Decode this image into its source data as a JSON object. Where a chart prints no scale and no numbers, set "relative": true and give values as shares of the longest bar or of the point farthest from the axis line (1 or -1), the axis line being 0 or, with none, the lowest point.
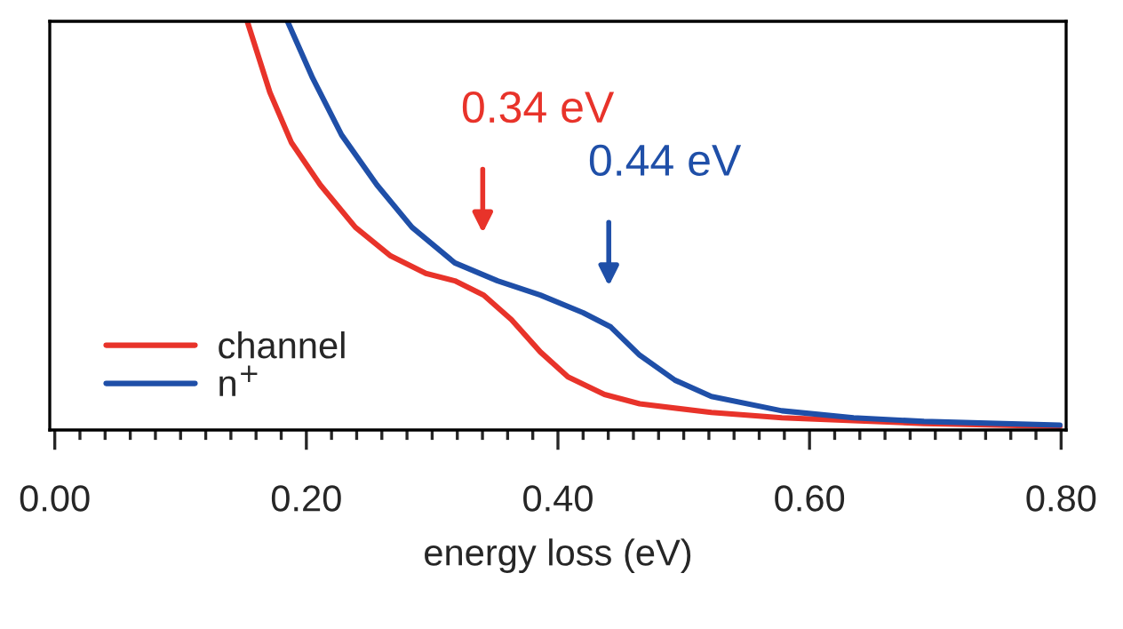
{
  "chart_data": {
    "type": "line",
    "relative": true,
    "xlabel": "energy loss (eV)",
    "xlim": [
      -0.004,
      0.804
    ],
    "xticks": [
      {
        "value": 0.0,
        "label": "0.00"
      },
      {
        "value": 0.02,
        "label": null
      },
      {
        "value": 0.04,
        "label": null
      },
      {
        "value": 0.06,
        "label": null
      },
      {
        "value": 0.08,
        "label": null
      },
      {
        "value": 0.1,
        "label": null
      },
      {
        "value": 0.12,
        "label": null
      },
      {
        "value": 0.14,
        "label": null
      },
      {
        "value": 0.16,
        "label": null
      },
      {
        "value": 0.18,
        "label": null
      },
      {
        "value": 0.2,
        "label": "0.20"
      },
      {
        "value": 0.22,
        "label": null
      },
      {
        "value": 0.24,
        "label": null
      },
      {
        "value": 0.26,
        "label": null
      },
      {
        "value": 0.28,
        "label": null
      },
      {
        "value": 0.3,
        "label": null
      },
      {
        "value": 0.32,
        "label": null
      },
      {
        "value": 0.34,
        "label": null
      },
      {
        "value": 0.36,
        "label": null
      },
      {
        "value": 0.38,
        "label": null
      },
      {
        "value": 0.4,
        "label": "0.40"
      },
      {
        "value": 0.42,
        "label": null
      },
      {
        "value": 0.44,
        "label": null
      },
      {
        "value": 0.46,
        "label": null
      },
      {
        "value": 0.48,
        "label": null
      },
      {
        "value": 0.5,
        "label": null
      },
      {
        "value": 0.52,
        "label": null
      },
      {
        "value": 0.54,
        "label": null
      },
      {
        "value": 0.56,
        "label": null
      },
      {
        "value": 0.58,
        "label": null
      },
      {
        "value": 0.6,
        "label": "0.60"
      },
      {
        "value": 0.62,
        "label": null
      },
      {
        "value": 0.64,
        "label": null
      },
      {
        "value": 0.66,
        "label": null
      },
      {
        "value": 0.68,
        "label": null
      },
      {
        "value": 0.7,
        "label": null
      },
      {
        "value": 0.72,
        "label": null
      },
      {
        "value": 0.74,
        "label": null
      },
      {
        "value": 0.76,
        "label": null
      },
      {
        "value": 0.78,
        "label": null
      },
      {
        "value": 0.8,
        "label": "0.80"
      }
    ],
    "tick_labels": "x",
    "grid": false,
    "legend": "bottom left",
    "line_style": "solid",
    "marker": "none",
    "series": [
      {
        "name": "channel",
        "color": "#e8332a",
        "x": [
          0.153,
          0.171,
          0.188,
          0.211,
          0.239,
          0.267,
          0.295,
          0.318,
          0.341,
          0.363,
          0.386,
          0.408,
          0.437,
          0.465,
          0.522,
          0.578,
          0.635,
          0.691,
          0.799
        ],
        "values": [
          1.0,
          0.826,
          0.704,
          0.6,
          0.496,
          0.426,
          0.383,
          0.365,
          0.33,
          0.27,
          0.191,
          0.13,
          0.087,
          0.064,
          0.043,
          0.03,
          0.023,
          0.016,
          0.009
        ]
      },
      {
        "name": "n$^{+}$",
        "color": "#1f4fa8",
        "x": [
          0.185,
          0.205,
          0.228,
          0.256,
          0.284,
          0.318,
          0.352,
          0.386,
          0.42,
          0.442,
          0.465,
          0.493,
          0.522,
          0.578,
          0.635,
          0.691,
          0.799
        ],
        "values": [
          1.0,
          0.861,
          0.722,
          0.6,
          0.496,
          0.409,
          0.365,
          0.33,
          0.287,
          0.252,
          0.183,
          0.122,
          0.082,
          0.047,
          0.03,
          0.021,
          0.012
        ]
      }
    ],
    "annotations": [
      "0.34 eV",
      "0.44 eV"
    ]
  }
}
